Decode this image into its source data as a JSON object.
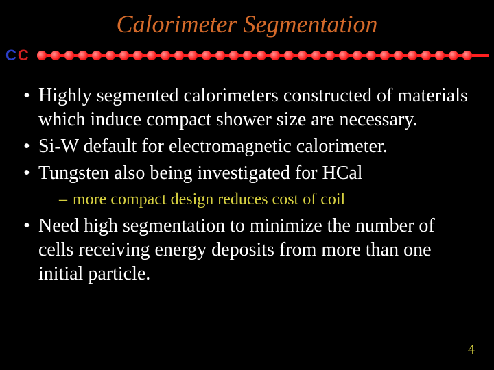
{
  "colors": {
    "background": "#000000",
    "title": "#d46a2a",
    "body_text": "#ffffff",
    "sub_text": "#d6d040",
    "pagenum": "#d6d040",
    "logo_c1": "#2a3ec8",
    "logo_c2": "#d02020",
    "bead_fill": "#ff2020",
    "bead_line": "#ff2020"
  },
  "typography": {
    "title_fontsize": 36,
    "body_fontsize": 28,
    "sub_fontsize": 24,
    "pagenum_fontsize": 20
  },
  "title": "Calorimeter Segmentation",
  "logo": {
    "c1": "C",
    "c2": "C"
  },
  "bullets": [
    {
      "text": "Highly segmented calorimeters constructed of materials which induce compact shower size are necessary."
    },
    {
      "text": "Si-W default for electromagnetic calorimeter."
    },
    {
      "text": "Tungsten also being investigated for HCal",
      "sub": [
        {
          "text": "more compact design reduces cost of coil"
        }
      ]
    },
    {
      "text": "Need high segmentation to minimize the number of cells receiving energy deposits from more than one initial particle."
    }
  ],
  "pagenum": "4",
  "beads_count": 32
}
